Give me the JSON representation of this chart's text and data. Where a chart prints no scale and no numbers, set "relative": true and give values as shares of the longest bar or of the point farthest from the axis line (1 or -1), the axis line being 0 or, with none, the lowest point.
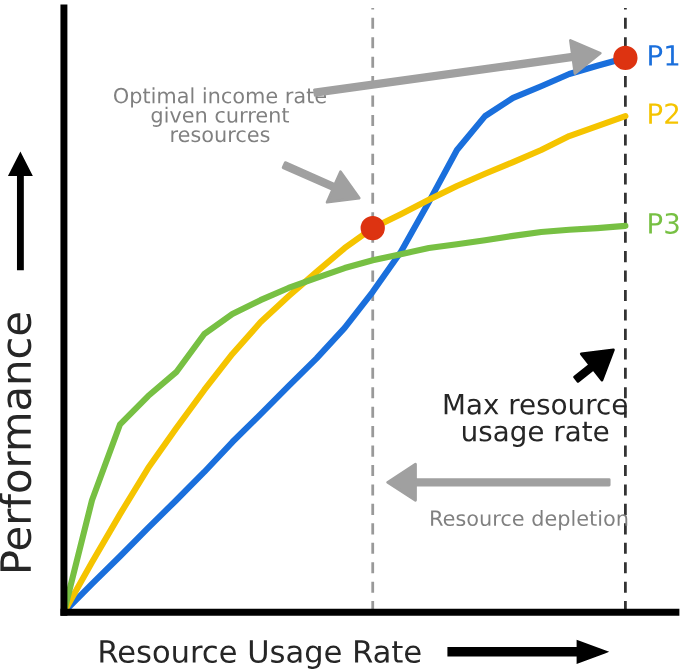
{
  "chart_data": {
    "type": "line",
    "relative": true,
    "xlabel": "Resource Usage Rate",
    "ylabel": "Performance",
    "categories": [
      null,
      null,
      null,
      null,
      null,
      null,
      null,
      null,
      null,
      null,
      null,
      null,
      null,
      null,
      null,
      null,
      null,
      null,
      null,
      null,
      null
    ],
    "line_style": "solid",
    "series": [
      {
        "name": "P1",
        "color": "#1a6fdc",
        "values": [
          0,
          0.051,
          0.101,
          0.152,
          0.202,
          0.253,
          0.307,
          0.357,
          0.408,
          0.458,
          0.513,
          0.578,
          0.65,
          0.74,
          0.834,
          0.895,
          0.928,
          0.949,
          0.971,
          0.986,
          1
        ]
      },
      {
        "name": "P2",
        "color": "#f5c400",
        "values": [
          0,
          0.09,
          0.177,
          0.26,
          0.332,
          0.401,
          0.466,
          0.523,
          0.57,
          0.614,
          0.657,
          0.693,
          0.718,
          0.744,
          0.769,
          0.791,
          0.812,
          0.834,
          0.859,
          0.877,
          0.895
        ]
      },
      {
        "name": "P3",
        "color": "#77c043",
        "values": [
          0,
          0.202,
          0.339,
          0.39,
          0.433,
          0.502,
          0.538,
          0.563,
          0.585,
          0.603,
          0.621,
          0.635,
          0.646,
          0.657,
          0.664,
          0.671,
          0.679,
          0.686,
          0.69,
          0.693,
          0.697
        ]
      }
    ],
    "annotations": [
      "Optimal income rate given current resources",
      "Max resource usage rate",
      "Resource depletion"
    ]
  }
}
